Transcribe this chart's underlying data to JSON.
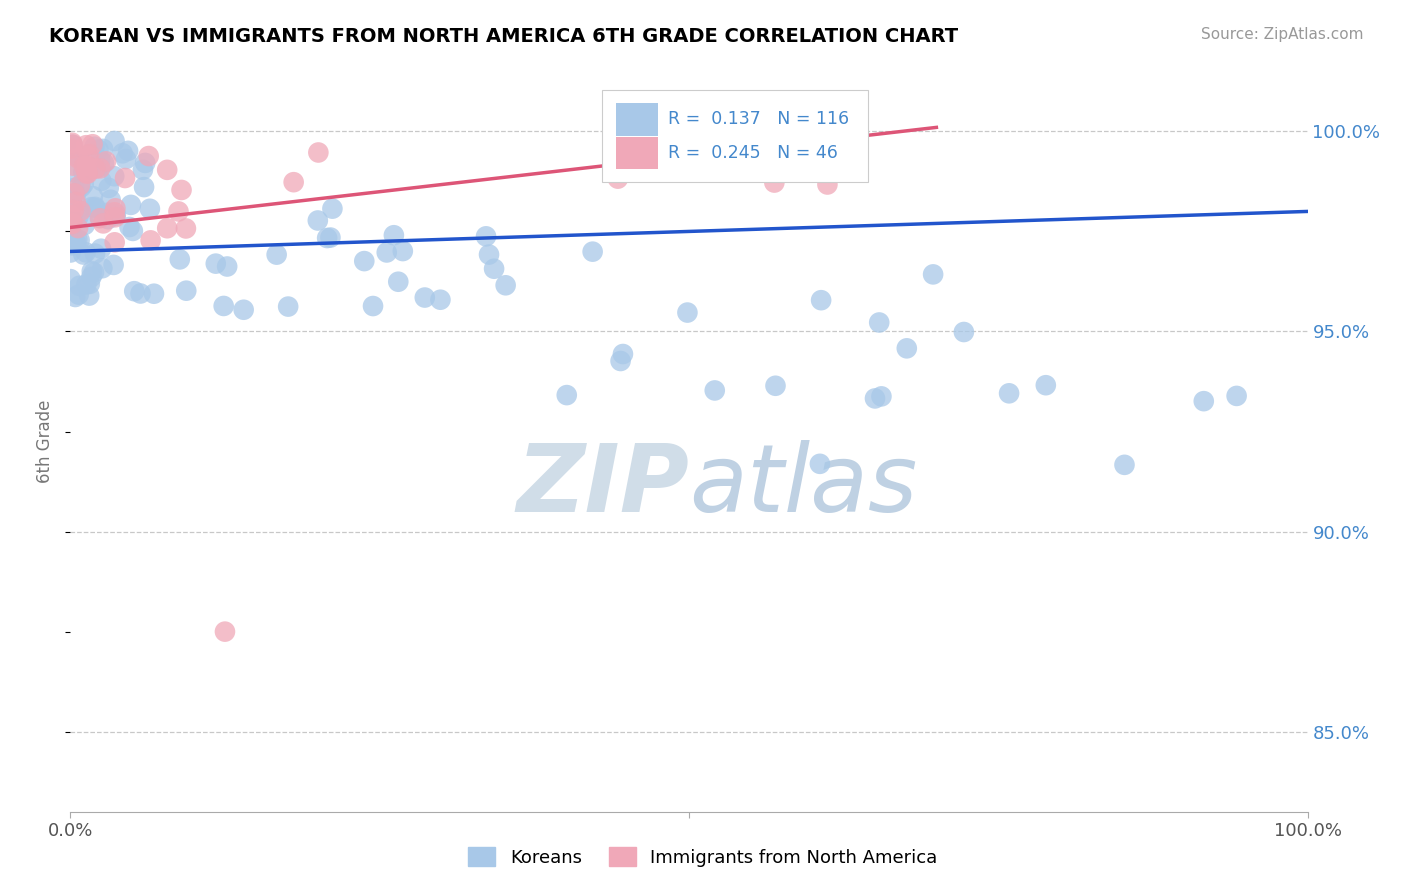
{
  "title": "KOREAN VS IMMIGRANTS FROM NORTH AMERICA 6TH GRADE CORRELATION CHART",
  "source": "Source: ZipAtlas.com",
  "ylabel": "6th Grade",
  "xlabel": "",
  "xlim": [
    0.0,
    1.0
  ],
  "ylim": [
    0.83,
    1.015
  ],
  "yticks": [
    0.85,
    0.9,
    0.95,
    1.0
  ],
  "ytick_labels": [
    "85.0%",
    "90.0%",
    "95.0%",
    "100.0%"
  ],
  "blue_R": 0.137,
  "blue_N": 116,
  "pink_R": 0.245,
  "pink_N": 46,
  "blue_color": "#a8c8e8",
  "pink_color": "#f0a8b8",
  "blue_line_color": "#2255cc",
  "pink_line_color": "#dd5577",
  "legend_label_blue": "Koreans",
  "legend_label_pink": "Immigrants from North America",
  "background_color": "#ffffff",
  "grid_color": "#c8c8c8",
  "title_color": "#000000",
  "axis_label_color": "#777777",
  "right_tick_color": "#4488cc",
  "watermark_color": "#d0dde8",
  "blue_line_x0": 0.0,
  "blue_line_y0": 0.97,
  "blue_line_x1": 1.0,
  "blue_line_y1": 0.98,
  "pink_line_x0": 0.0,
  "pink_line_y0": 0.976,
  "pink_line_x1": 0.7,
  "pink_line_y1": 1.001
}
